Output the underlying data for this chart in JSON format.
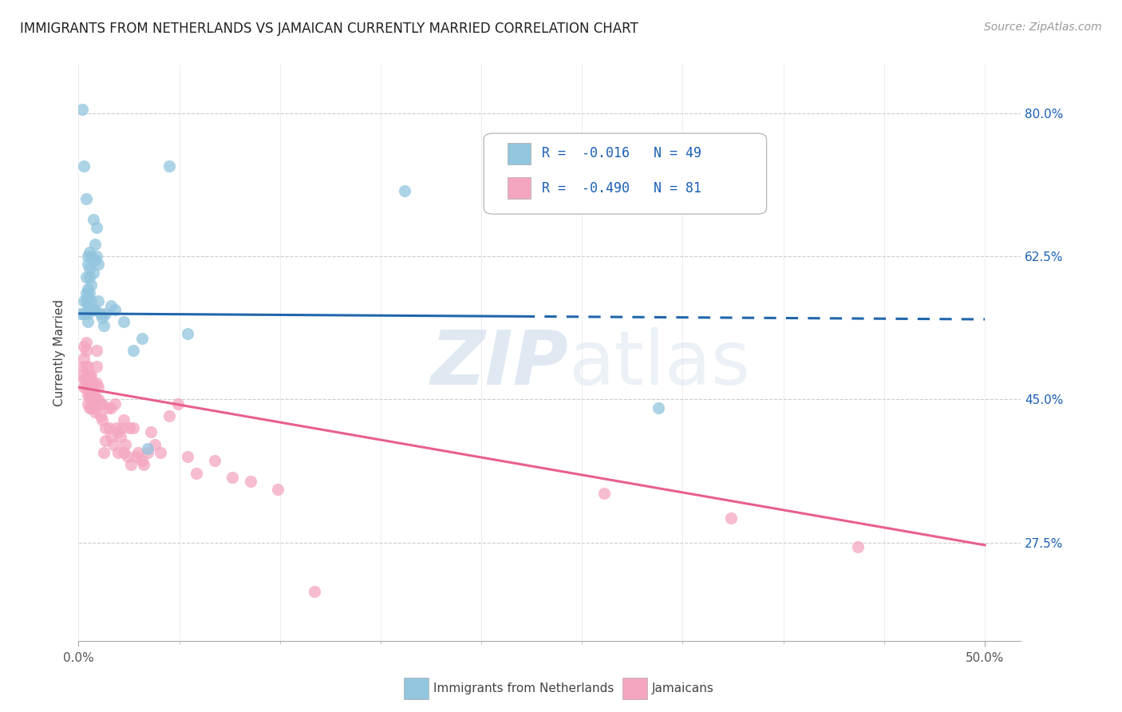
{
  "title": "IMMIGRANTS FROM NETHERLANDS VS JAMAICAN CURRENTLY MARRIED CORRELATION CHART",
  "source": "Source: ZipAtlas.com",
  "ylabel": "Currently Married",
  "yticks": [
    0.275,
    0.45,
    0.625,
    0.8
  ],
  "ytick_labels": [
    "27.5%",
    "45.0%",
    "62.5%",
    "80.0%"
  ],
  "legend_label1": "Immigrants from Netherlands",
  "legend_label2": "Jamaicans",
  "legend_R1": "-0.016",
  "legend_N1": "49",
  "legend_R2": "-0.490",
  "legend_N2": "81",
  "color_blue": "#92c5de",
  "color_pink": "#f4a6c0",
  "color_blue_line": "#2166ac",
  "color_pink_line": "#e8608a",
  "color_legend_text": "#1a5fb4",
  "background_color": "#ffffff",
  "blue_dots_x": [
    0.001,
    0.002,
    0.003,
    0.003,
    0.003,
    0.004,
    0.004,
    0.004,
    0.004,
    0.005,
    0.005,
    0.005,
    0.005,
    0.005,
    0.005,
    0.005,
    0.006,
    0.006,
    0.006,
    0.006,
    0.006,
    0.007,
    0.007,
    0.007,
    0.007,
    0.008,
    0.008,
    0.008,
    0.009,
    0.009,
    0.009,
    0.01,
    0.01,
    0.011,
    0.011,
    0.012,
    0.013,
    0.014,
    0.015,
    0.018,
    0.02,
    0.025,
    0.03,
    0.035,
    0.038,
    0.05,
    0.06,
    0.18,
    0.32
  ],
  "blue_dots_y": [
    0.555,
    0.805,
    0.735,
    0.57,
    0.555,
    0.695,
    0.6,
    0.58,
    0.57,
    0.625,
    0.615,
    0.585,
    0.575,
    0.565,
    0.555,
    0.545,
    0.63,
    0.61,
    0.6,
    0.58,
    0.56,
    0.625,
    0.59,
    0.57,
    0.56,
    0.67,
    0.605,
    0.56,
    0.64,
    0.62,
    0.56,
    0.66,
    0.625,
    0.615,
    0.57,
    0.555,
    0.55,
    0.54,
    0.555,
    0.565,
    0.56,
    0.545,
    0.51,
    0.525,
    0.39,
    0.735,
    0.53,
    0.705,
    0.44
  ],
  "pink_dots_x": [
    0.002,
    0.002,
    0.003,
    0.003,
    0.003,
    0.003,
    0.004,
    0.004,
    0.004,
    0.004,
    0.004,
    0.005,
    0.005,
    0.005,
    0.005,
    0.005,
    0.006,
    0.006,
    0.006,
    0.006,
    0.007,
    0.007,
    0.007,
    0.007,
    0.007,
    0.008,
    0.008,
    0.008,
    0.009,
    0.009,
    0.01,
    0.01,
    0.01,
    0.01,
    0.011,
    0.011,
    0.012,
    0.012,
    0.013,
    0.013,
    0.014,
    0.015,
    0.015,
    0.016,
    0.017,
    0.018,
    0.018,
    0.019,
    0.02,
    0.021,
    0.022,
    0.022,
    0.023,
    0.024,
    0.025,
    0.025,
    0.026,
    0.027,
    0.028,
    0.029,
    0.03,
    0.032,
    0.033,
    0.035,
    0.036,
    0.038,
    0.04,
    0.042,
    0.045,
    0.05,
    0.055,
    0.06,
    0.065,
    0.075,
    0.085,
    0.095,
    0.11,
    0.13,
    0.29,
    0.36,
    0.43
  ],
  "pink_dots_y": [
    0.49,
    0.48,
    0.515,
    0.5,
    0.475,
    0.465,
    0.52,
    0.51,
    0.49,
    0.475,
    0.465,
    0.49,
    0.48,
    0.465,
    0.455,
    0.445,
    0.48,
    0.47,
    0.455,
    0.44,
    0.48,
    0.47,
    0.46,
    0.45,
    0.44,
    0.47,
    0.455,
    0.44,
    0.45,
    0.435,
    0.51,
    0.49,
    0.47,
    0.45,
    0.465,
    0.45,
    0.445,
    0.43,
    0.445,
    0.425,
    0.385,
    0.415,
    0.4,
    0.44,
    0.415,
    0.44,
    0.405,
    0.395,
    0.445,
    0.415,
    0.41,
    0.385,
    0.405,
    0.415,
    0.425,
    0.385,
    0.395,
    0.38,
    0.415,
    0.37,
    0.415,
    0.38,
    0.385,
    0.375,
    0.37,
    0.385,
    0.41,
    0.395,
    0.385,
    0.43,
    0.445,
    0.38,
    0.36,
    0.375,
    0.355,
    0.35,
    0.34,
    0.215,
    0.335,
    0.305,
    0.27
  ],
  "xlim": [
    0.0,
    0.52
  ],
  "ylim": [
    0.155,
    0.86
  ],
  "blue_line_x0": 0.0,
  "blue_line_x_mid": 0.245,
  "blue_line_x1": 0.5,
  "blue_line_y0": 0.555,
  "blue_line_y1": 0.548,
  "pink_line_x0": 0.0,
  "pink_line_x1": 0.5,
  "pink_line_y0": 0.465,
  "pink_line_y1": 0.272,
  "xtick_positions": [
    0.0,
    0.5
  ],
  "xtick_labels": [
    "0.0%",
    "50.0%"
  ],
  "num_minor_xticks": 9,
  "watermark_zip": "ZIP",
  "watermark_atlas": "atlas"
}
